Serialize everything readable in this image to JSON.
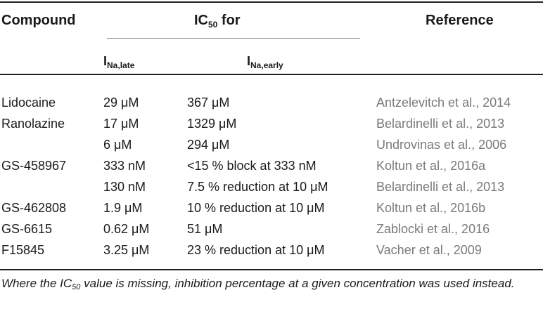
{
  "table": {
    "header": {
      "compound": "Compound",
      "ic50_main": "IC",
      "ic50_sub": "50",
      "ic50_suffix": " for",
      "reference": "Reference",
      "late_main": "I",
      "late_sub": "Na,late",
      "early_main": "I",
      "early_sub": "Na,early"
    },
    "rows": [
      {
        "compound": "Lidocaine",
        "late": "29 μM",
        "early": "367 μM",
        "reference": "Antzelevitch et al., 2014"
      },
      {
        "compound": "Ranolazine",
        "late": "17 μM",
        "early": "1329 μM",
        "reference": "Belardinelli et al., 2013"
      },
      {
        "compound": "",
        "late": "6 μM",
        "early": "294 μM",
        "reference": "Undrovinas et al., 2006"
      },
      {
        "compound": "GS-458967",
        "late": "333 nM",
        "early": "<15 % block at 333 nM",
        "reference": "Koltun et al., 2016a"
      },
      {
        "compound": "",
        "late": "130 nM",
        "early": "7.5 % reduction at 10 μM",
        "reference": "Belardinelli et al., 2013"
      },
      {
        "compound": "GS-462808",
        "late": "1.9 μM",
        "early": "10 % reduction at 10 μM",
        "reference": "Koltun et al., 2016b"
      },
      {
        "compound": "GS-6615",
        "late": "0.62 μM",
        "early": "51 μM",
        "reference": "Zablocki et al., 2016"
      },
      {
        "compound": "F15845",
        "late": "3.25 μM",
        "early": "23 % reduction at 10 μM",
        "reference": "Vacher et al., 2009"
      }
    ],
    "footnote": {
      "prefix": "Where the IC",
      "sub": "50",
      "suffix": " value is missing, inhibition percentage at a given concentration was used instead."
    }
  }
}
